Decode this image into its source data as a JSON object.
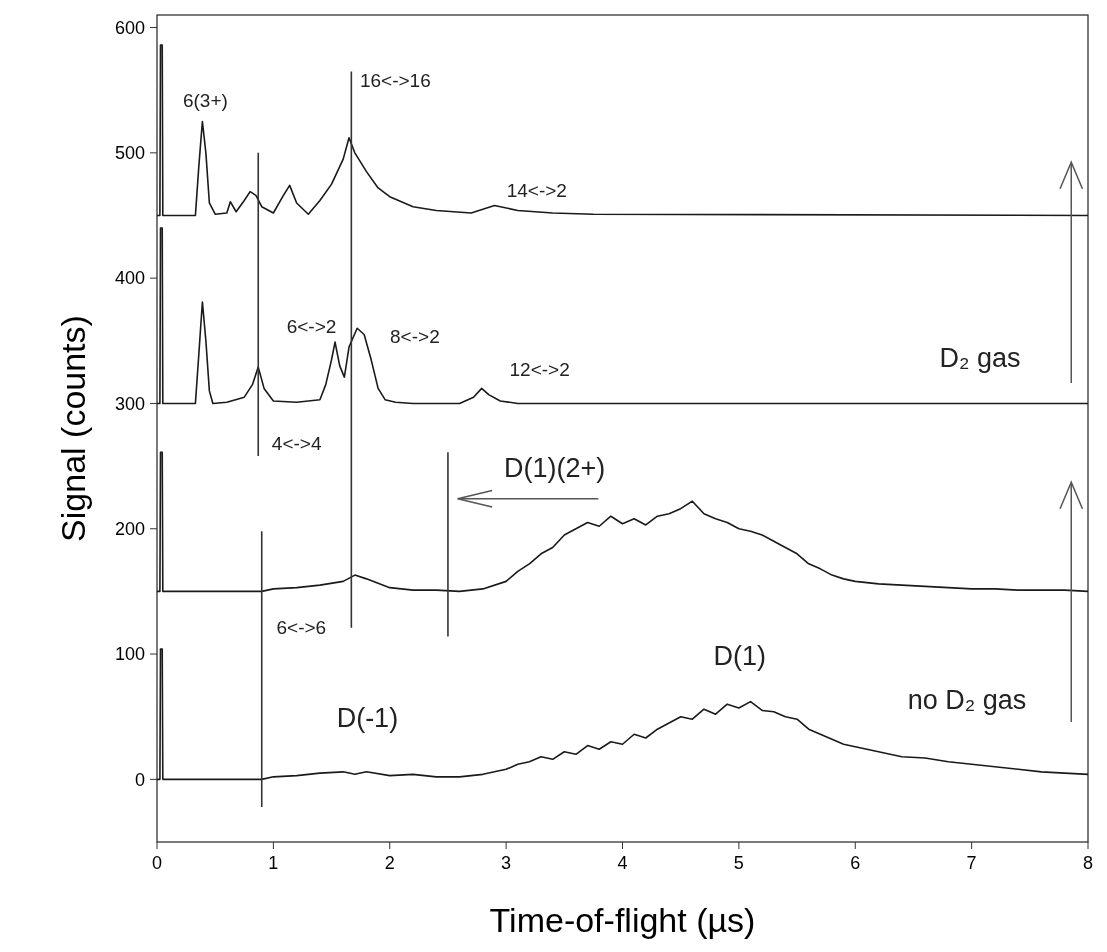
{
  "chart_data": {
    "type": "line",
    "xlabel": "Time-of-flight (µs)",
    "ylabel": "Signal (counts)",
    "xlim": [
      0,
      8
    ],
    "xticks": [
      0,
      1,
      2,
      3,
      4,
      5,
      6,
      7,
      8
    ],
    "ylim": [
      -50,
      610
    ],
    "yticks": [
      0,
      100,
      200,
      300,
      400,
      500,
      600
    ],
    "grid": false,
    "series": [
      {
        "color": "#1a1a1a",
        "x": [
          0,
          0.025,
          0.03,
          0.045,
          0.05,
          0.9,
          1.0,
          1.2,
          1.4,
          1.6,
          1.7,
          1.8,
          2.0,
          2.2,
          2.4,
          2.6,
          2.8,
          3.0,
          3.1,
          3.2,
          3.3,
          3.4,
          3.5,
          3.6,
          3.7,
          3.8,
          3.9,
          4.0,
          4.1,
          4.2,
          4.3,
          4.4,
          4.5,
          4.6,
          4.7,
          4.8,
          4.9,
          5.0,
          5.1,
          5.2,
          5.3,
          5.4,
          5.5,
          5.6,
          5.7,
          5.8,
          5.9,
          6.0,
          6.2,
          6.4,
          6.6,
          6.8,
          7.0,
          7.2,
          7.4,
          7.6,
          7.8,
          8.0
        ],
        "values": [
          0,
          0,
          104,
          104,
          0,
          0,
          2,
          3,
          5,
          6,
          4,
          6,
          3,
          4,
          2,
          2,
          4,
          8,
          12,
          14,
          18,
          16,
          22,
          20,
          27,
          24,
          30,
          28,
          36,
          33,
          40,
          45,
          50,
          48,
          56,
          52,
          60,
          57,
          62,
          55,
          54,
          50,
          48,
          40,
          36,
          32,
          28,
          26,
          22,
          18,
          17,
          14,
          12,
          10,
          8,
          6,
          5,
          4
        ]
      },
      {
        "color": "#1a1a1a",
        "x": [
          0,
          0.025,
          0.03,
          0.045,
          0.05,
          0.9,
          1.0,
          1.2,
          1.4,
          1.6,
          1.7,
          1.8,
          2.0,
          2.2,
          2.4,
          2.6,
          2.8,
          3.0,
          3.1,
          3.2,
          3.3,
          3.4,
          3.5,
          3.6,
          3.7,
          3.8,
          3.9,
          4.0,
          4.1,
          4.2,
          4.3,
          4.4,
          4.5,
          4.6,
          4.7,
          4.8,
          4.9,
          5.0,
          5.1,
          5.2,
          5.3,
          5.4,
          5.5,
          5.6,
          5.7,
          5.8,
          5.9,
          6.0,
          6.2,
          6.4,
          6.6,
          6.8,
          7.0,
          7.2,
          7.4,
          7.6,
          7.8,
          8.0
        ],
        "values": [
          150,
          150,
          261,
          261,
          150,
          150,
          152,
          153,
          155,
          158,
          163,
          160,
          153,
          151,
          151,
          150,
          152,
          158,
          166,
          172,
          180,
          185,
          195,
          200,
          205,
          202,
          210,
          204,
          208,
          203,
          210,
          212,
          216,
          222,
          212,
          208,
          205,
          200,
          198,
          195,
          190,
          185,
          180,
          172,
          168,
          163,
          160,
          158,
          156,
          155,
          154,
          153,
          152,
          152,
          151,
          151,
          151,
          150
        ]
      },
      {
        "color": "#1a1a1a",
        "x": [
          0,
          0.025,
          0.03,
          0.045,
          0.05,
          0.33,
          0.36,
          0.39,
          0.42,
          0.45,
          0.48,
          0.6,
          0.75,
          0.82,
          0.87,
          0.92,
          1.0,
          1.2,
          1.4,
          1.45,
          1.5,
          1.53,
          1.57,
          1.61,
          1.65,
          1.72,
          1.78,
          1.84,
          1.9,
          1.96,
          2.05,
          2.2,
          2.6,
          2.72,
          2.79,
          2.85,
          2.95,
          3.1,
          4,
          8
        ],
        "values": [
          300,
          300,
          440,
          440,
          300,
          300,
          340,
          381,
          350,
          310,
          300,
          301,
          305,
          315,
          329,
          312,
          302,
          301,
          303,
          315,
          335,
          349,
          330,
          321,
          345,
          360,
          355,
          335,
          312,
          303,
          301,
          300,
          300,
          305,
          312,
          307,
          302,
          300,
          300,
          300
        ]
      },
      {
        "color": "#1a1a1a",
        "x": [
          0,
          0.025,
          0.03,
          0.045,
          0.05,
          0.33,
          0.36,
          0.39,
          0.42,
          0.45,
          0.5,
          0.6,
          0.63,
          0.68,
          0.75,
          0.8,
          0.85,
          0.9,
          1.0,
          1.08,
          1.14,
          1.2,
          1.3,
          1.4,
          1.5,
          1.6,
          1.65,
          1.7,
          1.8,
          1.9,
          2.0,
          2.2,
          2.4,
          2.7,
          2.9,
          3.1,
          3.4,
          3.75,
          8
        ],
        "values": [
          450,
          450,
          586,
          586,
          450,
          450,
          490,
          525,
          500,
          460,
          451,
          452,
          461,
          453,
          462,
          469,
          466,
          457,
          452,
          465,
          474,
          460,
          451,
          462,
          475,
          495,
          512,
          500,
          485,
          472,
          465,
          457,
          454,
          452,
          458,
          454,
          452,
          451,
          450
        ]
      },
      {
        "color": "#333333",
        "x": [
          0.87,
          0.87
        ],
        "values": [
          500,
          258
        ]
      },
      {
        "color": "#333333",
        "x": [
          1.67,
          1.67
        ],
        "values": [
          565,
          121
        ]
      },
      {
        "color": "#333333",
        "x": [
          2.5,
          2.5
        ],
        "values": [
          261,
          114
        ]
      },
      {
        "color": "#333333",
        "x": [
          0.9,
          0.9
        ],
        "values": [
          198,
          -22
        ]
      }
    ],
    "annotations": [
      "6(3+)",
      "16<->16",
      "14<->2",
      "6<->2",
      "8<->2",
      "12<->2",
      "4<->4",
      "D(1)(2+)",
      "6<->6",
      "D(-1)",
      "D(1)",
      "D₂ gas",
      "no D₂ gas"
    ]
  }
}
